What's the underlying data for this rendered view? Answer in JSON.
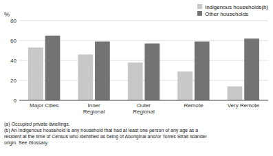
{
  "chart_data": {
    "type": "bar",
    "categories": [
      "Major Cities",
      "Inner\nRegional",
      "Outer\nRegional",
      "Remote",
      "Very Remote"
    ],
    "series": [
      {
        "name": "Indigenous households(b)",
        "color": "#c8c8c8",
        "values": [
          53,
          46,
          38,
          29,
          14
        ]
      },
      {
        "name": "Other households",
        "color": "#737373",
        "values": [
          65,
          59,
          57,
          59,
          62
        ]
      }
    ],
    "y_label": "%",
    "ylim": [
      0,
      80
    ],
    "yticks": [
      0,
      20,
      40,
      60,
      80
    ],
    "grid": true,
    "legend": "upper right",
    "annotations": [
      "(a) Occupied private dwellings.",
      "(b) An Indigenous household is any household that had at least one person of any age as a",
      "resident at the time of Census who identified as being of Aboriginal and/or Torres Strait Islander",
      "origin.  See Glossary."
    ]
  }
}
